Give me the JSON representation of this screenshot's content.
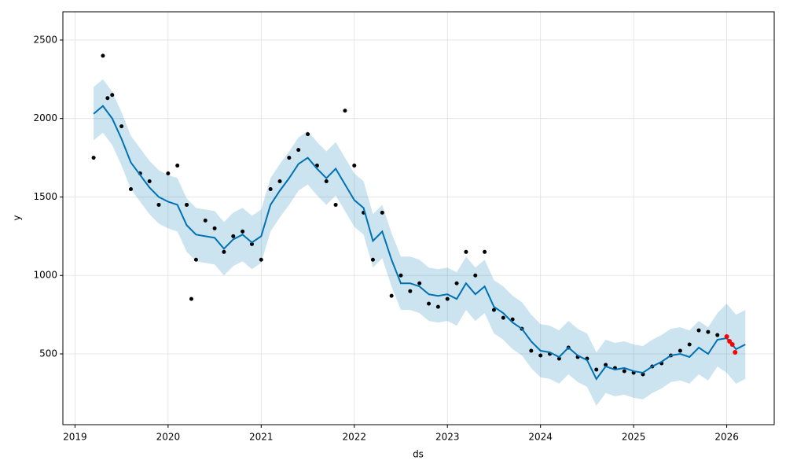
{
  "chart_data": {
    "type": "forecast",
    "xlabel": "ds",
    "ylabel": "y",
    "xlim": [
      2018.87,
      2026.51
    ],
    "ylim": [
      49,
      2680
    ],
    "xticks": [
      2019,
      2020,
      2021,
      2022,
      2023,
      2024,
      2025,
      2026
    ],
    "yticks": [
      500,
      1000,
      1500,
      2000,
      2500
    ],
    "grid": true,
    "forecast": {
      "color": "#0072b2",
      "band_color": "#0072b2",
      "x": [
        2019.2,
        2019.3,
        2019.4,
        2019.5,
        2019.6,
        2019.7,
        2019.8,
        2019.9,
        2020.0,
        2020.1,
        2020.2,
        2020.3,
        2020.4,
        2020.5,
        2020.6,
        2020.7,
        2020.8,
        2020.9,
        2021.0,
        2021.1,
        2021.2,
        2021.3,
        2021.4,
        2021.5,
        2021.6,
        2021.7,
        2021.8,
        2021.9,
        2022.0,
        2022.1,
        2022.2,
        2022.3,
        2022.4,
        2022.5,
        2022.6,
        2022.7,
        2022.8,
        2022.9,
        2023.0,
        2023.1,
        2023.2,
        2023.3,
        2023.4,
        2023.5,
        2023.6,
        2023.7,
        2023.8,
        2023.9,
        2024.0,
        2024.1,
        2024.2,
        2024.3,
        2024.4,
        2024.5,
        2024.6,
        2024.7,
        2024.8,
        2024.9,
        2025.0,
        2025.1,
        2025.2,
        2025.3,
        2025.4,
        2025.5,
        2025.6,
        2025.7,
        2025.8,
        2025.9,
        2026.0,
        2026.1,
        2026.2
      ],
      "values": [
        2030,
        2080,
        2000,
        1870,
        1720,
        1640,
        1560,
        1500,
        1470,
        1450,
        1320,
        1260,
        1250,
        1240,
        1170,
        1230,
        1260,
        1210,
        1250,
        1450,
        1540,
        1620,
        1710,
        1750,
        1680,
        1620,
        1680,
        1580,
        1480,
        1430,
        1220,
        1280,
        1100,
        950,
        950,
        930,
        880,
        870,
        880,
        850,
        950,
        880,
        930,
        800,
        760,
        700,
        660,
        580,
        520,
        510,
        480,
        540,
        490,
        460,
        340,
        420,
        400,
        410,
        390,
        380,
        420,
        450,
        490,
        500,
        480,
        540,
        500,
        590,
        600,
        530,
        560
      ],
      "lower": [
        1860,
        1910,
        1830,
        1700,
        1550,
        1470,
        1390,
        1330,
        1300,
        1280,
        1150,
        1090,
        1080,
        1070,
        1000,
        1060,
        1090,
        1040,
        1080,
        1280,
        1370,
        1450,
        1540,
        1580,
        1510,
        1450,
        1510,
        1410,
        1310,
        1260,
        1050,
        1110,
        930,
        780,
        780,
        760,
        710,
        700,
        710,
        680,
        780,
        710,
        760,
        630,
        590,
        530,
        490,
        410,
        350,
        340,
        310,
        370,
        320,
        290,
        170,
        250,
        230,
        240,
        220,
        210,
        250,
        280,
        320,
        330,
        310,
        370,
        330,
        420,
        380,
        310,
        340
      ],
      "upper": [
        2200,
        2250,
        2170,
        2040,
        1890,
        1810,
        1730,
        1670,
        1640,
        1620,
        1490,
        1430,
        1420,
        1410,
        1340,
        1400,
        1430,
        1380,
        1420,
        1620,
        1710,
        1790,
        1880,
        1920,
        1850,
        1790,
        1850,
        1750,
        1650,
        1600,
        1390,
        1450,
        1270,
        1120,
        1120,
        1100,
        1050,
        1040,
        1050,
        1020,
        1120,
        1050,
        1100,
        970,
        930,
        870,
        830,
        750,
        690,
        680,
        650,
        710,
        660,
        630,
        510,
        590,
        570,
        580,
        560,
        550,
        590,
        620,
        660,
        670,
        650,
        710,
        670,
        760,
        820,
        750,
        780
      ]
    },
    "observed": {
      "color": "#000000",
      "x": [
        2019.2,
        2019.3,
        2019.35,
        2019.4,
        2019.5,
        2019.6,
        2019.7,
        2019.8,
        2019.9,
        2020.0,
        2020.1,
        2020.2,
        2020.25,
        2020.3,
        2020.4,
        2020.5,
        2020.6,
        2020.7,
        2020.8,
        2020.9,
        2021.0,
        2021.1,
        2021.2,
        2021.3,
        2021.4,
        2021.5,
        2021.6,
        2021.7,
        2021.8,
        2021.9,
        2022.0,
        2022.1,
        2022.2,
        2022.3,
        2022.4,
        2022.5,
        2022.6,
        2022.7,
        2022.8,
        2022.9,
        2023.0,
        2023.1,
        2023.2,
        2023.3,
        2023.4,
        2023.5,
        2023.6,
        2023.7,
        2023.8,
        2023.9,
        2024.0,
        2024.1,
        2024.2,
        2024.3,
        2024.4,
        2024.5,
        2024.6,
        2024.7,
        2024.8,
        2024.9,
        2025.0,
        2025.1,
        2025.2,
        2025.3,
        2025.4,
        2025.5,
        2025.6,
        2025.7,
        2025.8,
        2025.9
      ],
      "values": [
        1750,
        2400,
        2130,
        2150,
        1950,
        1550,
        1650,
        1600,
        1450,
        1650,
        1700,
        1450,
        850,
        1100,
        1350,
        1300,
        1150,
        1250,
        1280,
        1200,
        1100,
        1550,
        1600,
        1750,
        1800,
        1900,
        1700,
        1600,
        1450,
        2050,
        1700,
        1400,
        1100,
        1400,
        870,
        1000,
        900,
        950,
        820,
        800,
        850,
        950,
        1150,
        1000,
        1150,
        780,
        730,
        720,
        660,
        520,
        490,
        500,
        470,
        540,
        480,
        470,
        400,
        430,
        410,
        390,
        380,
        370,
        420,
        440,
        490,
        520,
        560,
        650,
        640,
        620
      ]
    },
    "recent": {
      "color": "#ff0000",
      "x": [
        2026.0,
        2026.03,
        2026.06,
        2026.09
      ],
      "values": [
        610,
        580,
        560,
        510
      ]
    }
  }
}
